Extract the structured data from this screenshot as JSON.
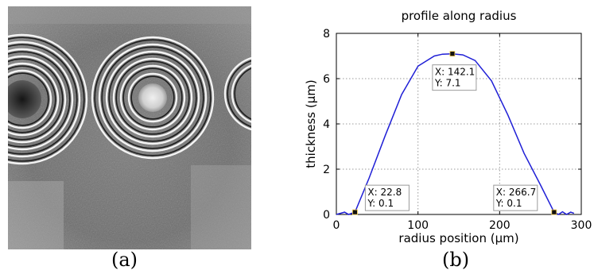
{
  "figure": {
    "panel_a_caption": "(a)",
    "panel_b_caption": "(b)"
  },
  "panel_a": {
    "kind": "interference-fringe phase map"
  },
  "colors": {
    "curve": "#1f1fd6",
    "grid": "#9a9a9a",
    "marker": "#111111",
    "tip_border": "#9a9a9a"
  },
  "chart_data": {
    "type": "line",
    "title": "profile along radius",
    "xlabel": "radius position (μm)",
    "ylabel": "thickness (μm)",
    "xlim": [
      0,
      300
    ],
    "ylim": [
      0,
      8
    ],
    "xticks": [
      0,
      100,
      200,
      300
    ],
    "yticks": [
      0,
      2,
      4,
      6,
      8
    ],
    "grid": true,
    "series": [
      {
        "x": [
          0,
          5,
          10,
          15,
          22.8,
          40,
          60,
          80,
          100,
          120,
          130,
          142.1,
          155,
          170,
          190,
          210,
          230,
          250,
          266.7,
          272,
          277,
          282,
          287,
          291
        ],
        "y": [
          0.0,
          0.05,
          0.1,
          0.0,
          0.1,
          1.6,
          3.5,
          5.3,
          6.55,
          7.0,
          7.08,
          7.1,
          7.05,
          6.8,
          5.9,
          4.4,
          2.7,
          1.3,
          0.1,
          0.0,
          0.12,
          0.0,
          0.1,
          0.05
        ]
      }
    ],
    "datatips": [
      {
        "x": 22.8,
        "y": 0.1,
        "label_x": "X: 22.8",
        "label_y": "Y: 0.1"
      },
      {
        "x": 142.1,
        "y": 7.1,
        "label_x": "X: 142.1",
        "label_y": "Y: 7.1"
      },
      {
        "x": 266.7,
        "y": 0.1,
        "label_x": "X: 266.7",
        "label_y": "Y: 0.1"
      }
    ]
  }
}
